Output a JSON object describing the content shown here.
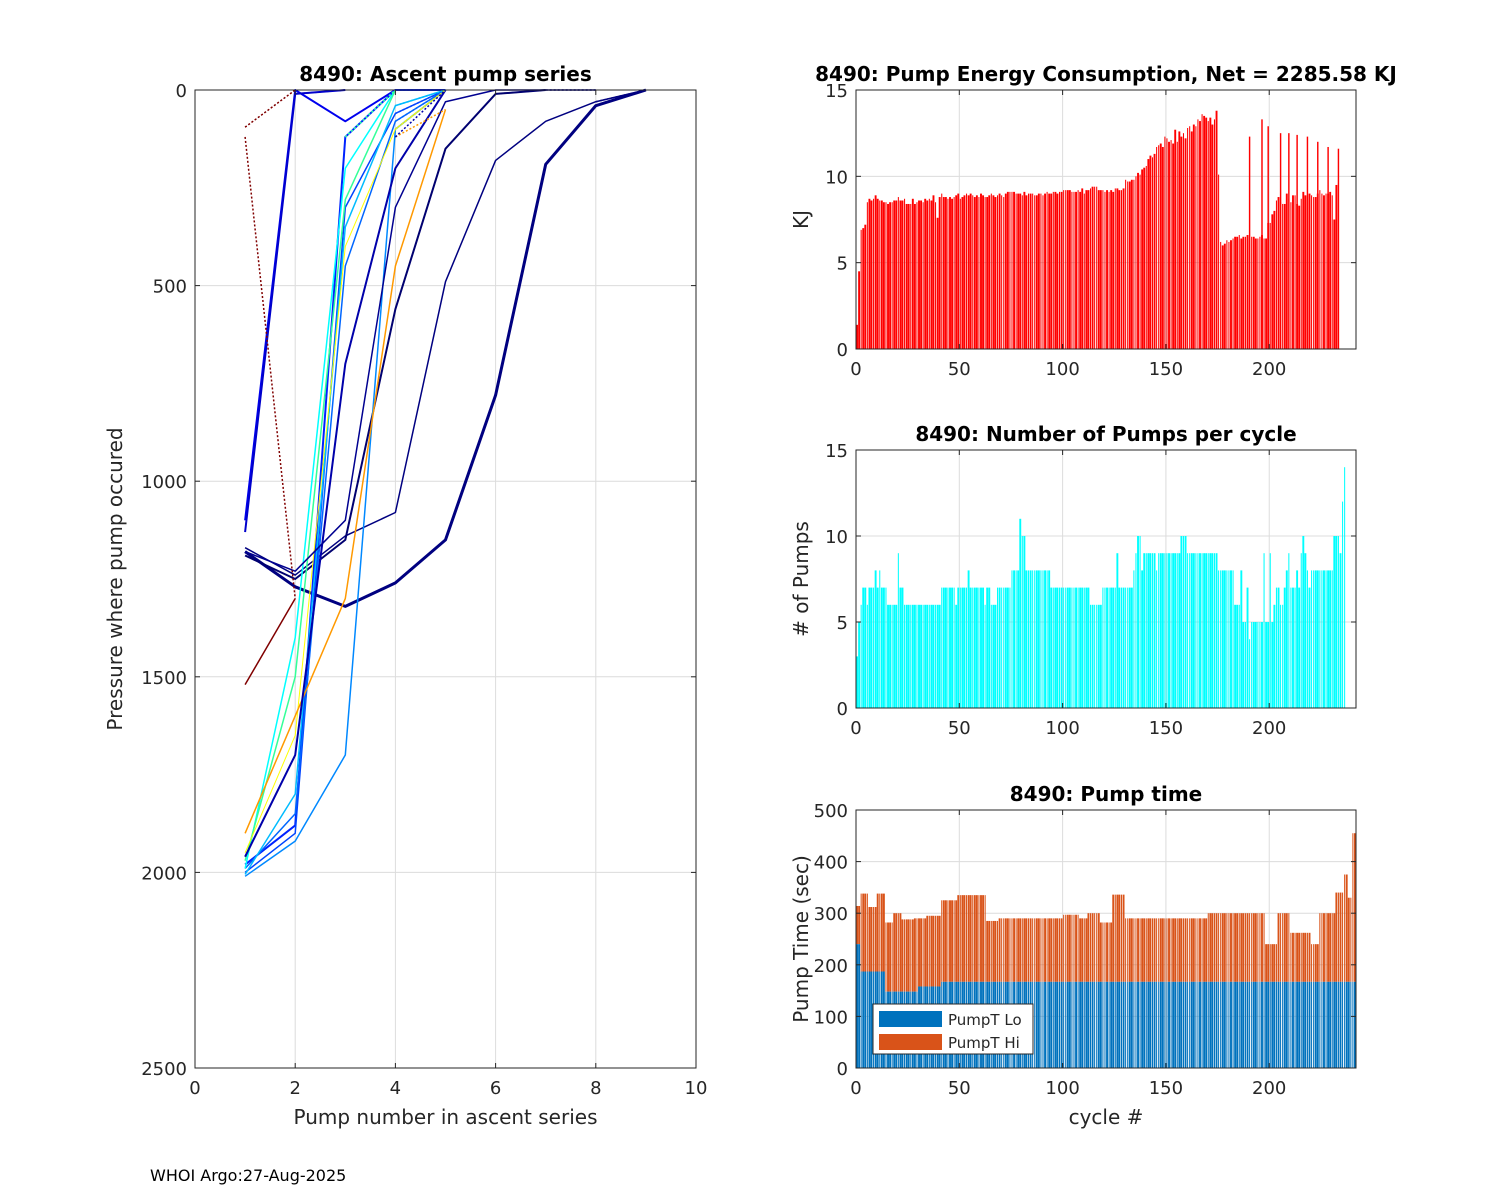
{
  "footer": "WHOI Argo:27-Aug-2025",
  "chart_data": [
    {
      "id": "ascent",
      "type": "line",
      "title": "8490: Ascent pump series",
      "xlabel": "Pump number in ascent series",
      "ylabel": "Pressure where pump occured",
      "xlim": [
        0,
        10
      ],
      "ylim": [
        0,
        2500
      ],
      "y_reversed": true,
      "grid": true,
      "xticks": [
        0,
        2,
        4,
        6,
        8,
        10
      ],
      "yticks": [
        0,
        500,
        1000,
        1500,
        2000,
        2500
      ],
      "colormap": "jet",
      "series": [
        {
          "name": "profile-1",
          "color": "#000080",
          "x": [
            1,
            2,
            3,
            4,
            5,
            6,
            7,
            8,
            9
          ],
          "y": [
            1180,
            1270,
            1320,
            1260,
            1150,
            780,
            190,
            40,
            0
          ],
          "width": 3
        },
        {
          "name": "profile-2",
          "color": "#000080",
          "x": [
            1,
            2,
            3,
            4,
            5,
            6,
            7,
            8,
            9
          ],
          "y": [
            1170,
            1240,
            1140,
            1080,
            490,
            180,
            80,
            30,
            0
          ],
          "width": 1.5
        },
        {
          "name": "profile-3",
          "color": "#000070",
          "x": [
            1,
            2,
            3,
            4,
            5,
            6,
            7
          ],
          "y": [
            1190,
            1250,
            1150,
            560,
            150,
            10,
            0
          ],
          "width": 2
        },
        {
          "name": "profile-4",
          "color": "#0000ee",
          "x": [
            1,
            2,
            3,
            4,
            5
          ],
          "y": [
            1100,
            0,
            80,
            0,
            0
          ],
          "width": 2
        },
        {
          "name": "profile-5",
          "color": "#0022ff",
          "x": [
            1,
            2,
            3,
            4,
            5
          ],
          "y": [
            1980,
            1880,
            120,
            0,
            0
          ],
          "width": 2
        },
        {
          "name": "profile-6",
          "color": "#0044ff",
          "x": [
            1,
            2,
            3,
            4,
            5
          ],
          "y": [
            2000,
            1900,
            300,
            60,
            0
          ],
          "width": 1.5
        },
        {
          "name": "profile-7",
          "color": "#0066ff",
          "x": [
            1,
            2,
            3,
            4,
            5
          ],
          "y": [
            1990,
            1850,
            450,
            80,
            0
          ],
          "width": 1.5
        },
        {
          "name": "profile-8",
          "color": "#0088ff",
          "x": [
            1,
            2,
            3,
            4,
            5
          ],
          "y": [
            2010,
            1920,
            1700,
            100,
            0
          ],
          "width": 1.5
        },
        {
          "name": "profile-9",
          "color": "#00bbff",
          "x": [
            1,
            2,
            3,
            4,
            5
          ],
          "y": [
            2005,
            1800,
            350,
            40,
            0
          ],
          "width": 1.5
        },
        {
          "name": "profile-10",
          "color": "#00ffff",
          "x": [
            1,
            2,
            3,
            4
          ],
          "y": [
            1990,
            1400,
            200,
            0
          ],
          "width": 1.5
        },
        {
          "name": "profile-11",
          "color": "#33ff99",
          "x": [
            1,
            2,
            3,
            4
          ],
          "y": [
            1970,
            1500,
            280,
            0
          ],
          "width": 1.5
        },
        {
          "name": "profile-12",
          "color": "#ffff00",
          "x": [
            1,
            2,
            3,
            4,
            5
          ],
          "y": [
            1950,
            1650,
            400,
            100,
            0
          ],
          "width": 1
        },
        {
          "name": "profile-13",
          "color": "#ff9900",
          "x": [
            1,
            2,
            3,
            4,
            5
          ],
          "y": [
            1900,
            1600,
            1300,
            450,
            50
          ],
          "width": 1.5
        },
        {
          "name": "profile-14",
          "color": "#0000aa",
          "x": [
            1,
            2,
            3,
            4,
            5
          ],
          "y": [
            1960,
            1700,
            700,
            200,
            0
          ],
          "width": 2
        },
        {
          "name": "profile-15",
          "color": "#800000",
          "x": [
            1,
            2
          ],
          "y": [
            1520,
            1300
          ],
          "width": 1.5
        },
        {
          "name": "profile-16",
          "color": "#800000",
          "x": [
            1,
            2
          ],
          "y": [
            95,
            0
          ],
          "width": 1,
          "dash": "2,2"
        },
        {
          "name": "profile-17",
          "color": "#0000cc",
          "x": [
            1,
            2,
            3
          ],
          "y": [
            1130,
            10,
            0
          ],
          "width": 2
        },
        {
          "name": "profile-18",
          "color": "#000090",
          "x": [
            1,
            2,
            3,
            4,
            5,
            6,
            7,
            8
          ],
          "y": [
            1180,
            1230,
            1100,
            300,
            30,
            0,
            0,
            0
          ],
          "width": 1.5
        }
      ]
    },
    {
      "id": "energy",
      "type": "bar",
      "title": "8490: Pump Energy Consumption,  Net = 2285.58 KJ",
      "xlabel": "",
      "ylabel": "KJ",
      "xlim": [
        0,
        242
      ],
      "ylim": [
        0,
        15
      ],
      "xticks": [
        0,
        50,
        100,
        150,
        200
      ],
      "yticks": [
        0,
        5,
        10,
        15
      ],
      "grid": true,
      "color": "#ff0000",
      "net_kj": 2285.58,
      "values": [
        1.4,
        4.5,
        6.9,
        7.0,
        7.2,
        8.5,
        8.7,
        8.6,
        8.7,
        8.9,
        8.7,
        8.6,
        8.6,
        8.5,
        8.5,
        8.4,
        8.5,
        8.5,
        8.6,
        8.6,
        8.8,
        8.6,
        8.6,
        8.7,
        8.4,
        8.4,
        8.4,
        8.7,
        8.4,
        8.5,
        8.6,
        8.6,
        8.5,
        8.7,
        8.6,
        8.7,
        8.6,
        8.9,
        8.5,
        7.6,
        8.8,
        9.0,
        8.8,
        8.8,
        8.7,
        8.8,
        8.7,
        8.8,
        8.9,
        9.0,
        8.7,
        8.8,
        8.9,
        9.0,
        8.9,
        9.0,
        8.9,
        8.8,
        8.9,
        8.8,
        9.0,
        8.9,
        8.8,
        8.8,
        8.9,
        9.0,
        8.9,
        8.8,
        8.9,
        9.0,
        8.9,
        8.8,
        9.0,
        9.1,
        9.1,
        9.1,
        9.1,
        9.0,
        9.0,
        9.0,
        8.9,
        9.1,
        8.9,
        9.0,
        9.0,
        9.0,
        8.9,
        8.9,
        9.0,
        9.0,
        8.9,
        9.0,
        9.1,
        9.0,
        9.0,
        9.1,
        9.1,
        9.0,
        9.1,
        9.1,
        9.2,
        9.2,
        9.2,
        9.2,
        9.1,
        9.1,
        9.1,
        9.2,
        9.1,
        9.3,
        9.0,
        9.2,
        9.2,
        9.3,
        9.4,
        9.4,
        9.4,
        9.2,
        9.2,
        9.2,
        9.1,
        9.2,
        9.1,
        9.2,
        9.1,
        9.3,
        9.3,
        9.2,
        9.2,
        9.3,
        9.8,
        9.7,
        9.7,
        9.8,
        9.8,
        10.0,
        10.2,
        10.1,
        10.4,
        10.5,
        10.6,
        11.0,
        11.2,
        11.1,
        11.3,
        11.7,
        11.8,
        11.9,
        11.7,
        12.3,
        12.2,
        12.0,
        12.1,
        11.9,
        12.7,
        12.0,
        12.6,
        12.3,
        12.5,
        12.2,
        12.8,
        12.9,
        12.6,
        13.0,
        12.9,
        13.3,
        13.2,
        13.6,
        13.5,
        13.4,
        13.2,
        13.4,
        13.0,
        13.3,
        13.8,
        10.1,
        6.2,
        6.0,
        6.1,
        6.3,
        6.2,
        6.3,
        6.4,
        6.5,
        6.5,
        6.6,
        6.4,
        6.5,
        6.5,
        6.6,
        6.4,
        6.5,
        6.5,
        6.4,
        6.4,
        6.5,
        6.6,
        6.4,
        6.4,
        7.3,
        7.3,
        7.8,
        8.0,
        8.6,
        8.8,
        8.5,
        8.4,
        8.4,
        9.0,
        8.7,
        8.5,
        8.9,
        8.9,
        8.4,
        8.3,
        8.7,
        9.1,
        8.9,
        8.9,
        9.0,
        8.9,
        8.8,
        8.8,
        9.0,
        9.2,
        9.0,
        8.9,
        9.0,
        9.0,
        9.1,
        8.9,
        7.5,
        9.5,
        9.6
      ],
      "spikes": {
        "190": 12.3,
        "196": 13.3,
        "199": 12.9,
        "205": 12.5,
        "209": 12.5,
        "213": 12.4,
        "218": 12.3,
        "223": 12.0,
        "228": 11.7,
        "233": 11.6
      }
    },
    {
      "id": "npumps",
      "type": "bar",
      "title": "8490: Number of Pumps per cycle",
      "xlabel": "",
      "ylabel": "# of Pumps",
      "xlim": [
        0,
        242
      ],
      "ylim": [
        0,
        15
      ],
      "xticks": [
        0,
        50,
        100,
        150,
        200
      ],
      "yticks": [
        0,
        5,
        10,
        15
      ],
      "grid": true,
      "color": "#00ffff",
      "values": [
        3,
        5,
        6,
        7,
        7,
        6,
        7,
        7,
        7,
        8,
        7,
        8,
        7,
        7,
        7,
        6,
        6,
        6,
        6,
        6,
        9,
        7,
        7,
        6,
        6,
        6,
        6,
        6,
        6,
        6,
        6,
        6,
        6,
        6,
        6,
        6,
        6,
        6,
        6,
        6,
        6,
        7,
        7,
        7,
        7,
        7,
        7,
        7,
        6,
        7,
        7,
        7,
        7,
        7,
        8,
        7,
        7,
        7,
        7,
        7,
        7,
        7,
        6,
        7,
        7,
        6,
        6,
        6,
        7,
        7,
        7,
        7,
        7,
        7,
        7,
        8,
        8,
        8,
        8,
        11,
        10,
        10,
        8,
        8,
        8,
        8,
        8,
        8,
        8,
        8,
        8,
        8,
        8,
        8,
        7,
        7,
        7,
        7,
        7,
        7,
        7,
        7,
        7,
        7,
        7,
        7,
        7,
        7,
        7,
        7,
        7,
        7,
        7,
        6,
        6,
        6,
        6,
        6,
        6,
        7,
        7,
        7,
        7,
        7,
        7,
        7,
        9,
        7,
        7,
        7,
        7,
        7,
        7,
        7,
        8,
        9,
        10,
        10,
        8,
        9,
        9,
        9,
        9,
        9,
        9,
        8,
        9,
        9,
        9,
        9,
        9,
        9,
        9,
        9,
        9,
        9,
        9,
        10,
        10,
        10,
        9,
        9,
        9,
        9,
        9,
        9,
        9,
        9,
        9,
        9,
        9,
        9,
        9,
        9,
        9,
        8,
        8,
        8,
        8,
        8,
        8,
        8,
        8,
        6,
        6,
        6,
        8,
        5,
        5,
        7,
        4,
        5,
        5,
        5,
        5,
        5,
        5,
        9,
        5,
        5,
        9,
        5,
        6,
        7,
        7,
        6,
        6,
        7,
        8,
        9,
        7,
        7,
        7,
        8,
        7,
        9,
        10,
        9,
        8,
        7,
        8,
        8,
        8,
        8,
        8,
        8,
        8,
        8,
        8,
        8,
        8,
        10,
        10,
        10,
        9,
        12,
        14
      ]
    },
    {
      "id": "pumptime",
      "type": "bar",
      "stacked": true,
      "title": "8490: Pump time",
      "xlabel": "cycle #",
      "ylabel": "Pump Time (sec)",
      "xlim": [
        0,
        242
      ],
      "ylim": [
        0,
        500
      ],
      "xticks": [
        0,
        50,
        100,
        150,
        200
      ],
      "yticks": [
        0,
        100,
        200,
        300,
        400,
        500
      ],
      "grid": true,
      "legend": {
        "position": "bottom-left",
        "entries": [
          "PumpT Lo",
          "PumpT Hi"
        ]
      },
      "series": [
        {
          "name": "PumpT Lo",
          "color": "#0072bd",
          "values_rule": [
            [
              0,
              2,
              240
            ],
            [
              2,
              14,
              187
            ],
            [
              14,
              30,
              148
            ],
            [
              30,
              41,
              158
            ],
            [
              41,
              242,
              167
            ]
          ]
        },
        {
          "name": "PumpT Hi",
          "color": "#d95319",
          "totals_rule": [
            [
              0,
              2,
              314
            ],
            [
              2,
              6,
              338
            ],
            [
              6,
              10,
              312
            ],
            [
              10,
              14,
              338
            ],
            [
              14,
              18,
              282
            ],
            [
              18,
              22,
              300
            ],
            [
              22,
              28,
              288
            ],
            [
              28,
              34,
              290
            ],
            [
              34,
              41,
              295
            ],
            [
              41,
              49,
              325
            ],
            [
              49,
              63,
              335
            ],
            [
              63,
              69,
              285
            ],
            [
              69,
              100,
              290
            ],
            [
              100,
              108,
              297
            ],
            [
              108,
              112,
              290
            ],
            [
              112,
              118,
              300
            ],
            [
              118,
              124,
              282
            ],
            [
              124,
              130,
              336
            ],
            [
              130,
              162,
              290
            ],
            [
              162,
              170,
              290
            ],
            [
              170,
              178,
              300
            ],
            [
              178,
              185,
              300
            ],
            [
              185,
              190,
              300
            ],
            [
              190,
              198,
              300
            ],
            [
              198,
              204,
              240
            ],
            [
              204,
              210,
              300
            ],
            [
              210,
              214,
              262
            ],
            [
              214,
              220,
              262
            ],
            [
              220,
              224,
              240
            ],
            [
              224,
              232,
              300
            ],
            [
              232,
              236,
              340
            ],
            [
              236,
              238,
              375
            ],
            [
              238,
              240,
              330
            ],
            [
              240,
              242,
              455
            ]
          ]
        }
      ]
    }
  ]
}
